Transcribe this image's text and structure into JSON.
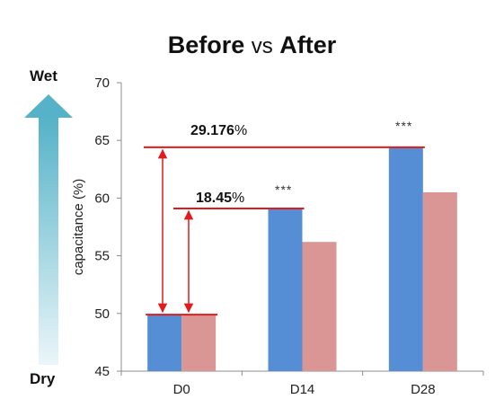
{
  "chart_data": {
    "type": "bar",
    "title_part1": "Before",
    "title_vs": "vs",
    "title_part2": "After",
    "ylabel": "capacitance (%)",
    "ylim": [
      45,
      70
    ],
    "yticks": [
      45,
      50,
      55,
      60,
      65,
      70
    ],
    "categories": [
      "D0",
      "D14",
      "D28"
    ],
    "series": [
      {
        "color": "#558ed5",
        "values": [
          49.9,
          59.1,
          64.4
        ]
      },
      {
        "color": "#d99694",
        "values": [
          49.9,
          56.2,
          60.5
        ]
      }
    ],
    "significance": [
      "",
      "***",
      "***"
    ],
    "annotations": [
      {
        "value": "18.45",
        "unit": "%",
        "from": 49.9,
        "to": 59.1
      },
      {
        "value": "29.176",
        "unit": "%",
        "from": 49.9,
        "to": 64.4
      }
    ],
    "scale_top_label": "Wet",
    "scale_bottom_label": "Dry"
  }
}
